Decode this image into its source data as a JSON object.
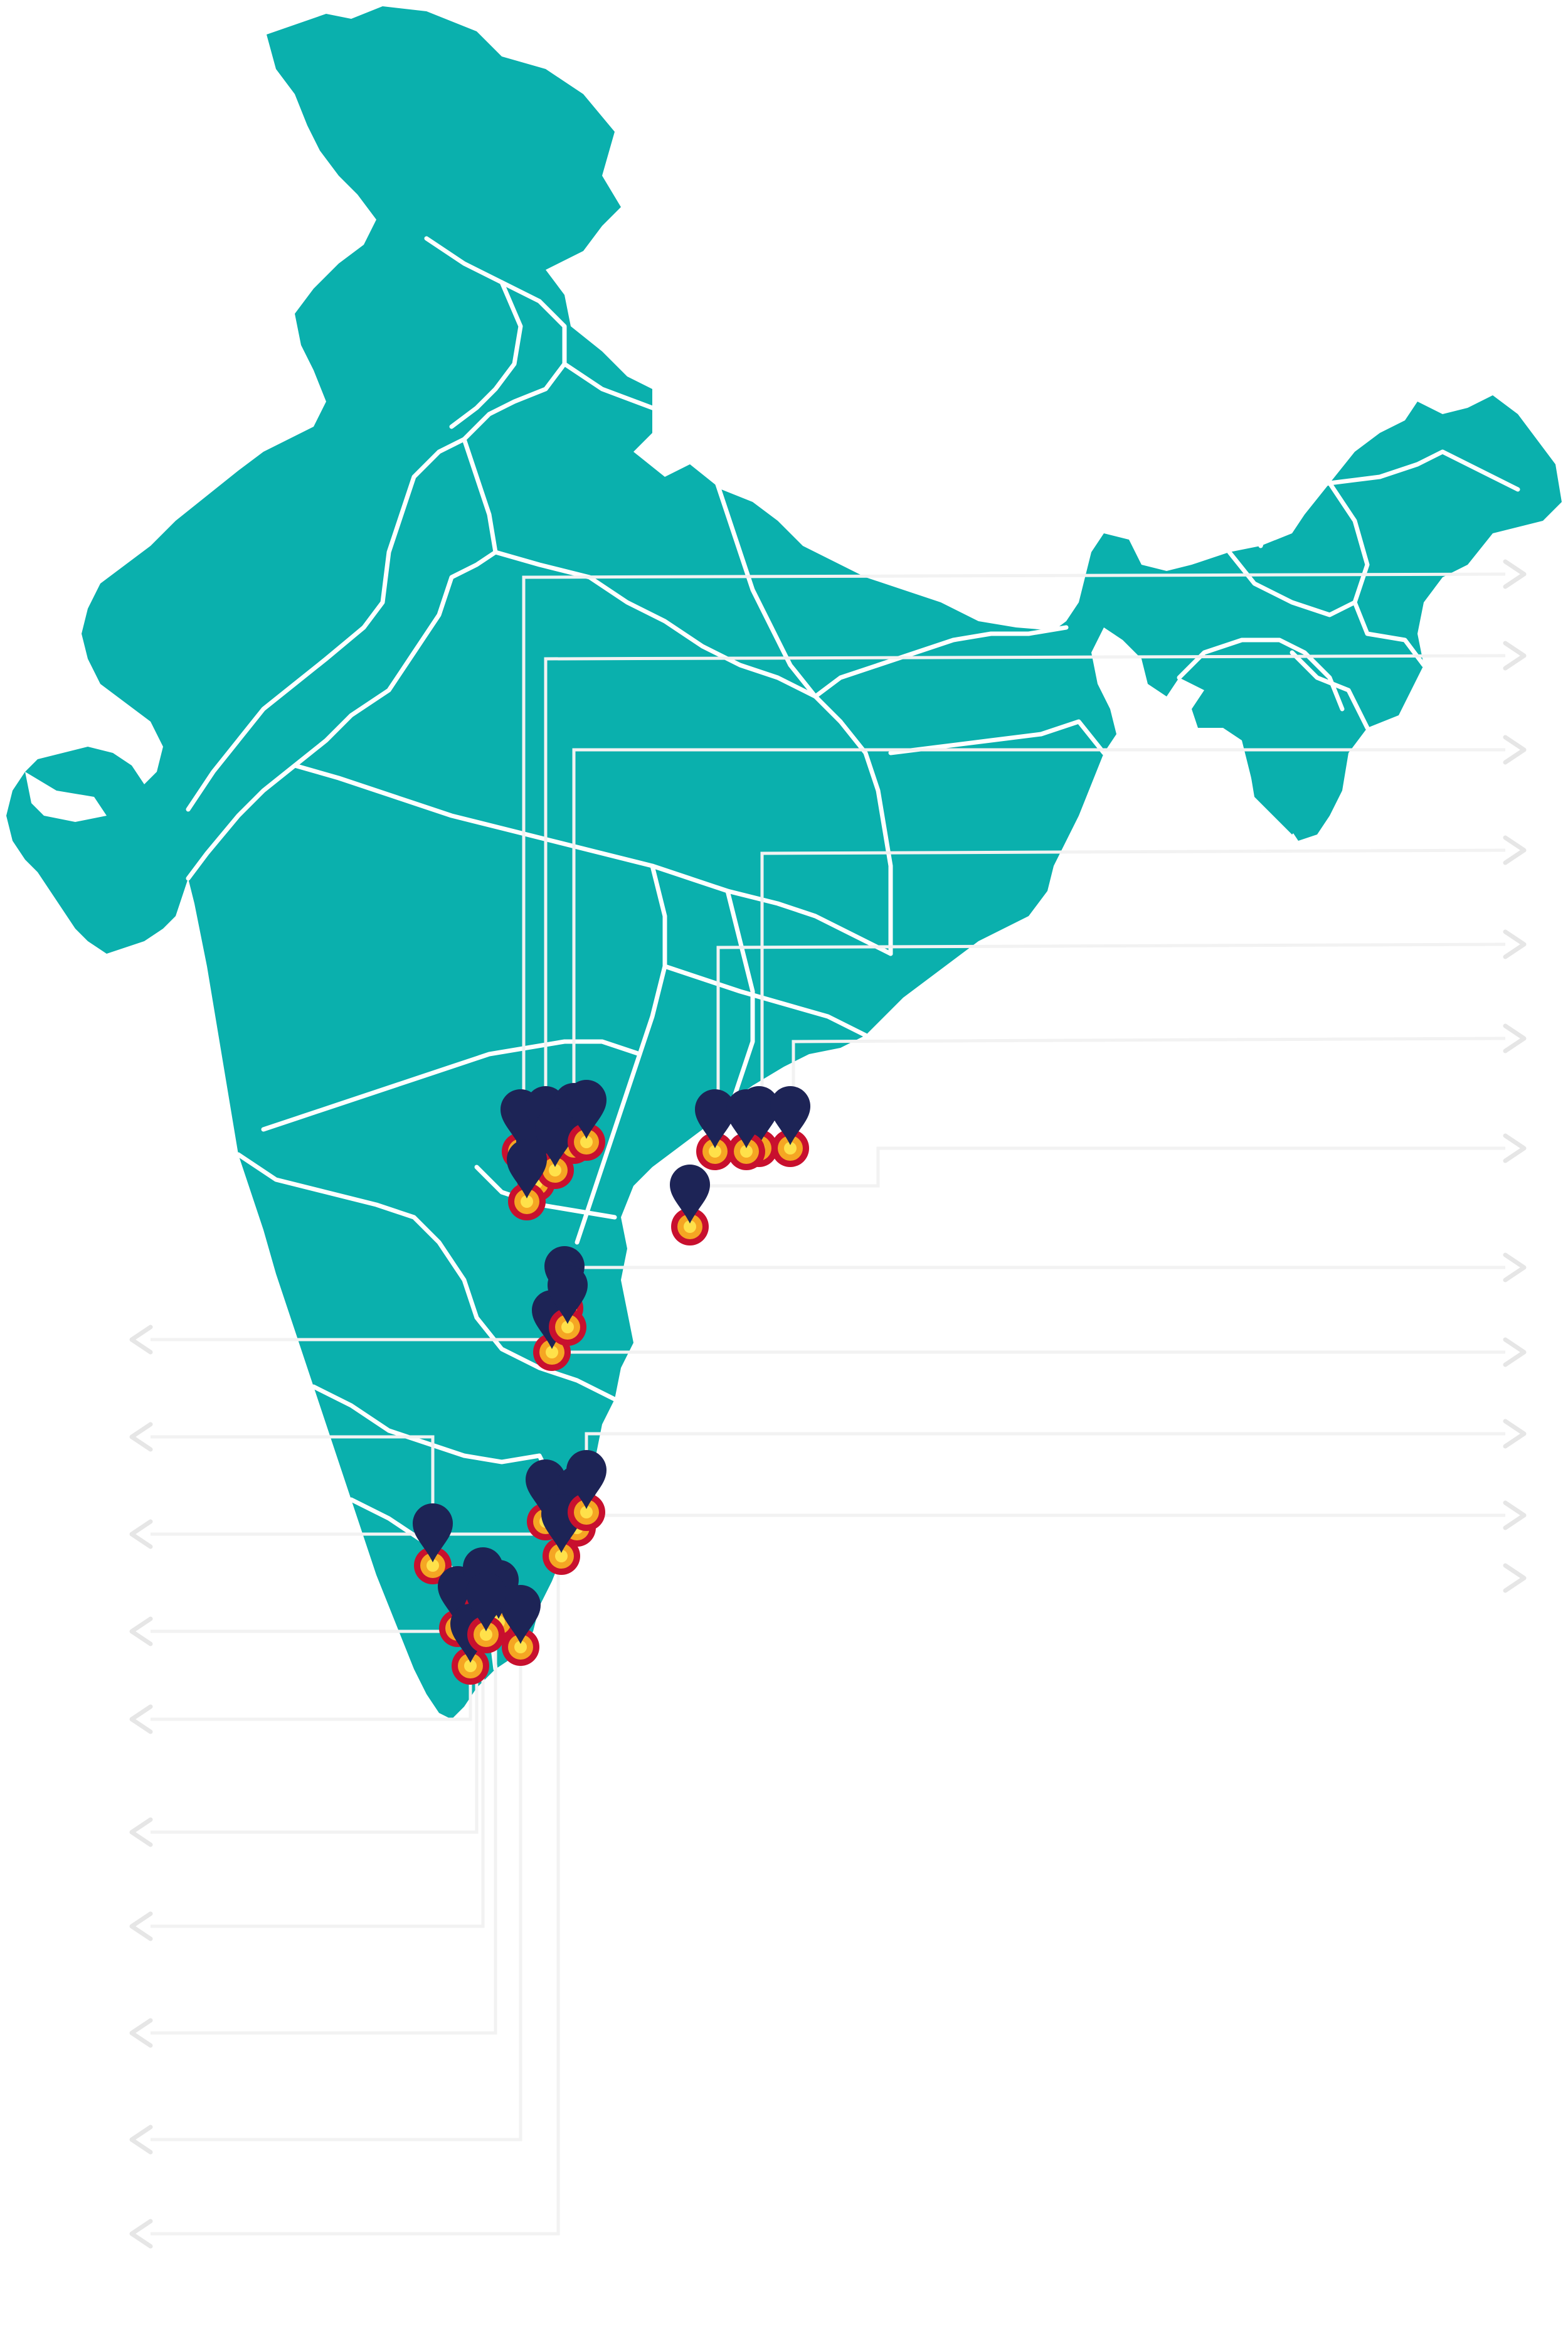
{
  "map": {
    "land_color": "#0ab0ad",
    "border_color": "#ffffff",
    "leader_color": "#f2f2f2",
    "arrow_color": "#e6e6e6",
    "pin_color": "#1d2456",
    "marker_outer_color": "#c8102e",
    "marker_mid_color": "#f5a623",
    "marker_inner_color": "#ffe14a",
    "pin_clusters": [
      {
        "region": "telangana",
        "count": 7
      },
      {
        "region": "coastal-andhra-north",
        "count": 4
      },
      {
        "region": "coastal-andhra-central",
        "count": 1
      },
      {
        "region": "rayalaseema",
        "count": 3
      },
      {
        "region": "chennai-region",
        "count": 4
      },
      {
        "region": "kerala-tamil-nadu-south",
        "count": 7
      }
    ],
    "right_arrow_count": 11,
    "left_arrow_count": 10
  }
}
